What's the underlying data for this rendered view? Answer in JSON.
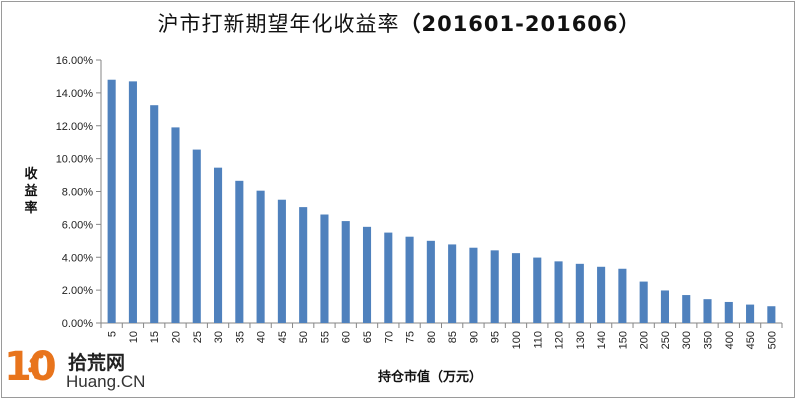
{
  "chart_data": {
    "type": "bar",
    "title": "沪市打新期望年化收益率",
    "title_period": "（201601-201606）",
    "xlabel": "持仓市值（万元）",
    "ylabel": "收益率",
    "ylim": [
      0,
      16
    ],
    "yticks": [
      "0.00%",
      "2.00%",
      "4.00%",
      "6.00%",
      "8.00%",
      "10.00%",
      "12.00%",
      "14.00%",
      "16.00%"
    ],
    "categories": [
      "5",
      "10",
      "15",
      "20",
      "25",
      "30",
      "35",
      "40",
      "45",
      "50",
      "55",
      "60",
      "65",
      "70",
      "75",
      "80",
      "85",
      "90",
      "95",
      "100",
      "110",
      "120",
      "130",
      "140",
      "150",
      "200",
      "250",
      "300",
      "350",
      "400",
      "450",
      "500"
    ],
    "values": [
      14.8,
      14.7,
      13.25,
      11.9,
      10.55,
      9.45,
      8.65,
      8.05,
      7.5,
      7.05,
      6.6,
      6.2,
      5.85,
      5.5,
      5.25,
      5.0,
      4.78,
      4.58,
      4.42,
      4.25,
      3.98,
      3.75,
      3.6,
      3.42,
      3.3,
      2.52,
      1.98,
      1.7,
      1.45,
      1.28,
      1.12,
      1.02
    ],
    "bar_color": "#4f81bd",
    "grid": false,
    "legend": "none"
  },
  "watermark": {
    "number": "10",
    "cn": "拾荒网",
    "en": "Huang.CN",
    "color": "#e8741c"
  }
}
